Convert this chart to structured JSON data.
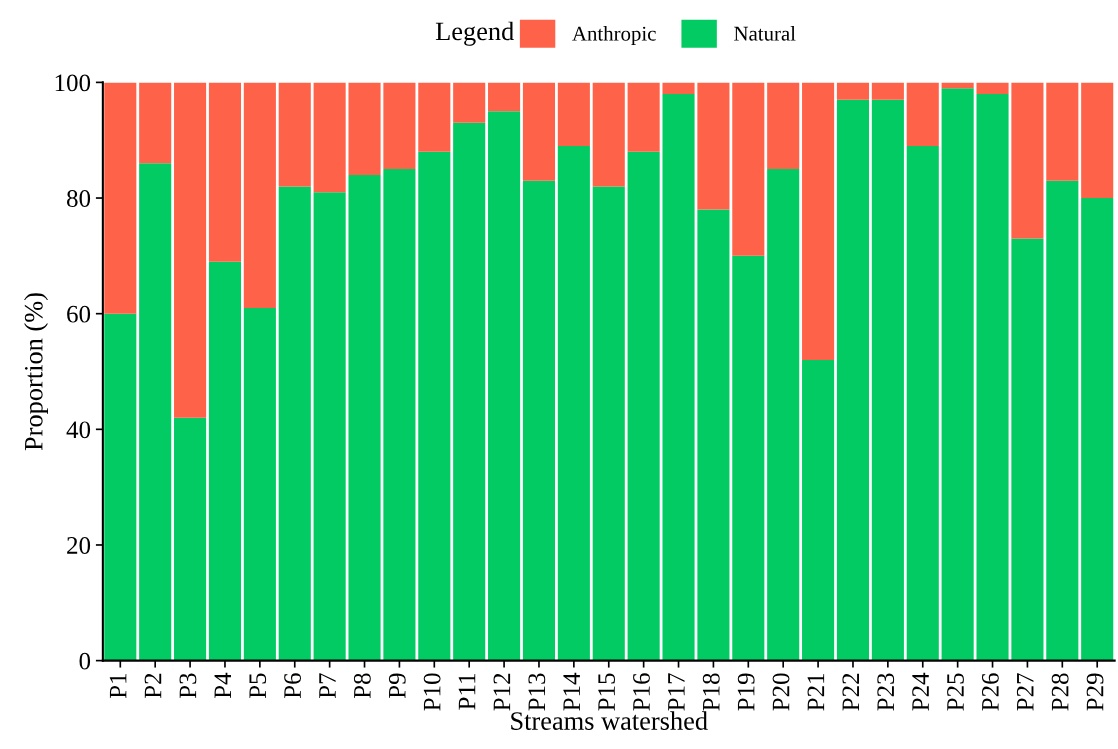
{
  "chart_data": {
    "type": "bar",
    "stacked": true,
    "xlabel": "Streams watershed",
    "ylabel": "Proportion (%)",
    "legend_title": "Legend",
    "legend": "top",
    "categories": [
      "P1",
      "P2",
      "P3",
      "P4",
      "P5",
      "P6",
      "P7",
      "P8",
      "P9",
      "P10",
      "P11",
      "P12",
      "P13",
      "P14",
      "P15",
      "P16",
      "P17",
      "P18",
      "P19",
      "P20",
      "P21",
      "P22",
      "P23",
      "P24",
      "P25",
      "P26",
      "P27",
      "P28",
      "P29"
    ],
    "series": [
      {
        "name": "Natural",
        "color": "#02cb63",
        "values": [
          60,
          86,
          42,
          69,
          61,
          82,
          81,
          84,
          85,
          88,
          93,
          95,
          83,
          89,
          82,
          88,
          98,
          78,
          70,
          85,
          52,
          97,
          97,
          89,
          99,
          98,
          73,
          83,
          80
        ]
      },
      {
        "name": "Anthropic",
        "color": "#fe634a",
        "values": [
          40,
          14,
          58,
          31,
          39,
          18,
          19,
          16,
          15,
          12,
          7,
          5,
          17,
          11,
          18,
          12,
          2,
          22,
          30,
          15,
          48,
          3,
          3,
          11,
          1,
          2,
          27,
          17,
          20
        ]
      }
    ],
    "ylim": [
      0,
      100
    ],
    "yticks": [
      0,
      20,
      40,
      60,
      80,
      100
    ],
    "grid": false
  }
}
